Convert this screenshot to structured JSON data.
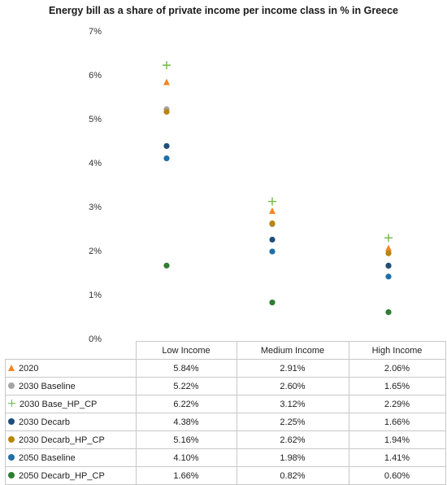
{
  "chart_data": {
    "type": "scatter",
    "title": "Energy bill as a share of private income per income class in % in Greece",
    "categories": [
      "Low Income",
      "Medium Income",
      "High Income"
    ],
    "y_tick_labels": [
      "0%",
      "1%",
      "2%",
      "3%",
      "4%",
      "5%",
      "6%",
      "7%"
    ],
    "ylim": [
      0,
      7
    ],
    "grid": false,
    "legend": "data-table-below",
    "series": [
      {
        "name": "2020",
        "marker": "triangle",
        "color": "#f58426",
        "values": [
          5.84,
          2.91,
          2.06
        ],
        "labels": [
          "5.84%",
          "2.91%",
          "2.06%"
        ]
      },
      {
        "name": "2030 Baseline",
        "marker": "circle",
        "color": "#a5a5a5",
        "values": [
          5.22,
          2.6,
          1.65
        ],
        "labels": [
          "5.22%",
          "2.60%",
          "1.65%"
        ]
      },
      {
        "name": "2030 Base_HP_CP",
        "marker": "plus",
        "color": "#6fba44",
        "values": [
          6.22,
          3.12,
          2.29
        ],
        "labels": [
          "6.22%",
          "3.12%",
          "2.29%"
        ]
      },
      {
        "name": "2030 Decarb",
        "marker": "circle",
        "color": "#1f4e79",
        "values": [
          4.38,
          2.25,
          1.66
        ],
        "labels": [
          "4.38%",
          "2.25%",
          "1.66%"
        ]
      },
      {
        "name": "2030 Decarb_HP_CP",
        "marker": "circle",
        "color": "#b8860b",
        "values": [
          5.16,
          2.62,
          1.94
        ],
        "labels": [
          "5.16%",
          "2.62%",
          "1.94%"
        ]
      },
      {
        "name": "2050 Baseline",
        "marker": "circle",
        "color": "#1f6fa8",
        "values": [
          4.1,
          1.98,
          1.41
        ],
        "labels": [
          "4.10%",
          "1.98%",
          "1.41%"
        ]
      },
      {
        "name": "2050 Decarb_HP_CP",
        "marker": "circle",
        "color": "#2e7d32",
        "values": [
          1.66,
          0.82,
          0.6
        ],
        "labels": [
          "1.66%",
          "0.82%",
          "0.60%"
        ]
      }
    ]
  }
}
